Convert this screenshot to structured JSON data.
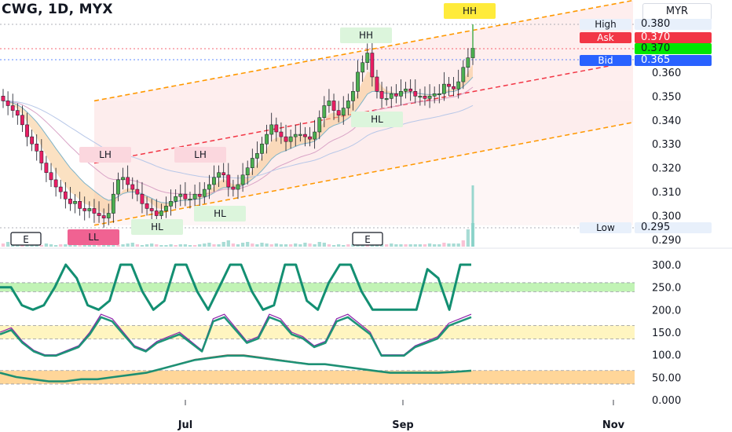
{
  "header": {
    "title": "CWG, 1D, MYX",
    "currency": "MYR"
  },
  "price_labels": {
    "high": {
      "label": "High",
      "value": "0.380"
    },
    "ask": {
      "label": "Ask",
      "value": "0.370"
    },
    "last": {
      "value": "0.370"
    },
    "bid": {
      "label": "Bid",
      "value": "0.365"
    },
    "low": {
      "label": "Low",
      "value": "0.295"
    }
  },
  "colors": {
    "up": "#4caf50",
    "down": "#e91e63",
    "ask": "#f23645",
    "bid": "#2962ff",
    "last": "#00e600",
    "channel": "#ff9800",
    "mid": "#f23645",
    "osc": "#138f72"
  },
  "chart_data": [
    {
      "type": "candlestick",
      "title": "CWG, 1D, MYX",
      "yaxis": {
        "ticks": [
          "0.380",
          "0.370",
          "0.360",
          "0.350",
          "0.340",
          "0.330",
          "0.320",
          "0.310",
          "0.300",
          "0.290"
        ],
        "range": [
          0.29,
          0.38
        ]
      },
      "xaxis": {
        "ticks": [
          "Jul",
          "Sep",
          "Nov"
        ]
      },
      "candles_close": [
        0.348,
        0.346,
        0.344,
        0.342,
        0.338,
        0.333,
        0.33,
        0.327,
        0.322,
        0.318,
        0.315,
        0.312,
        0.31,
        0.307,
        0.305,
        0.306,
        0.303,
        0.302,
        0.303,
        0.301,
        0.3,
        0.299,
        0.301,
        0.309,
        0.315,
        0.316,
        0.313,
        0.311,
        0.309,
        0.305,
        0.303,
        0.302,
        0.3,
        0.302,
        0.304,
        0.306,
        0.308,
        0.309,
        0.307,
        0.307,
        0.309,
        0.308,
        0.311,
        0.313,
        0.316,
        0.318,
        0.317,
        0.312,
        0.311,
        0.313,
        0.317,
        0.32,
        0.324,
        0.326,
        0.33,
        0.334,
        0.338,
        0.335,
        0.333,
        0.331,
        0.333,
        0.334,
        0.334,
        0.333,
        0.332,
        0.335,
        0.341,
        0.346,
        0.348,
        0.344,
        0.342,
        0.345,
        0.348,
        0.352,
        0.36,
        0.364,
        0.368,
        0.358,
        0.352,
        0.349,
        0.349,
        0.351,
        0.35,
        0.352,
        0.353,
        0.352,
        0.35,
        0.35,
        0.349,
        0.35,
        0.351,
        0.351,
        0.355,
        0.354,
        0.353,
        0.356,
        0.362,
        0.366,
        0.37
      ],
      "annotations": [
        "HH",
        "HH",
        "LH",
        "LH",
        "HL",
        "HL",
        "HL",
        "LL"
      ],
      "events": [
        "E",
        "E"
      ],
      "trend_channel": {
        "upper_start": 0.348,
        "upper_end": 0.39,
        "lower_start": 0.296,
        "lower_end": 0.339
      }
    },
    {
      "type": "line",
      "yaxis": {
        "ticks": [
          "300.0",
          "250.0",
          "200.0",
          "150.0",
          "100.0",
          "50.00",
          "0.000"
        ],
        "range": [
          0,
          300
        ]
      },
      "bands": [
        {
          "from": 240,
          "to": 260
        },
        {
          "from": 135,
          "to": 165
        },
        {
          "from": 35,
          "to": 65
        }
      ],
      "series": [
        {
          "values": [
            250,
            250,
            210,
            200,
            210,
            250,
            300,
            270,
            210,
            200,
            220,
            300,
            300,
            240,
            200,
            220,
            300,
            300,
            240,
            200,
            250,
            300,
            300,
            240,
            200,
            210,
            300,
            300,
            220,
            200,
            260,
            300,
            300,
            240,
            200,
            200,
            200,
            200,
            200,
            290,
            270,
            200,
            300,
            300
          ]
        },
        {
          "values": [
            150,
            160,
            130,
            110,
            100,
            100,
            110,
            120,
            150,
            190,
            180,
            150,
            120,
            110,
            130,
            140,
            150,
            130,
            110,
            180,
            190,
            160,
            130,
            140,
            190,
            180,
            150,
            140,
            120,
            130,
            180,
            190,
            170,
            150,
            100,
            100,
            100,
            120,
            130,
            140,
            170,
            180,
            190
          ]
        },
        {
          "values": [
            60,
            50,
            45,
            40,
            40,
            45,
            45,
            50,
            55,
            60,
            70,
            80,
            90,
            95,
            100,
            100,
            95,
            90,
            85,
            80,
            80,
            75,
            70,
            65,
            60,
            60,
            60,
            60,
            62,
            65
          ]
        }
      ]
    }
  ]
}
